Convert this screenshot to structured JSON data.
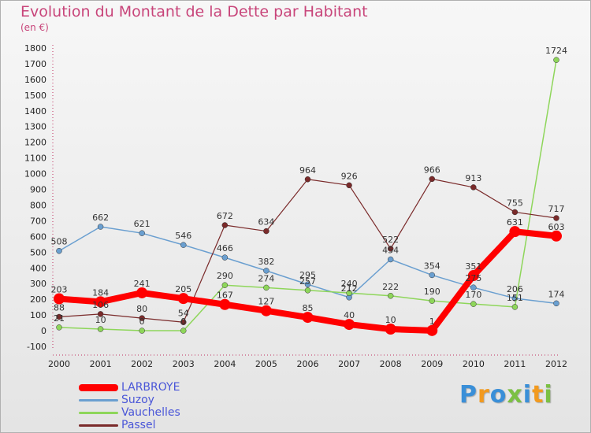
{
  "title": "Evolution du Montant de la Dette par Habitant",
  "subtitle": "(en €)",
  "brand": {
    "text": "Proxiti",
    "colors": [
      "#3a8fd8",
      "#f29a1f",
      "#3a8fd8",
      "#7bc043",
      "#3a8fd8",
      "#f29a1f",
      "#7bc043"
    ]
  },
  "chart_data": {
    "type": "line",
    "x": [
      "2000",
      "2001",
      "2002",
      "2003",
      "2004",
      "2005",
      "2006",
      "2007",
      "2008",
      "2009",
      "2010",
      "2011",
      "2012"
    ],
    "ylim": [
      -100,
      1800
    ],
    "yticks": [
      "-100",
      "0",
      "100",
      "200",
      "300",
      "400",
      "500",
      "600",
      "700",
      "800",
      "900",
      "1000",
      "1100",
      "1200",
      "1300",
      "1400",
      "1500",
      "1600",
      "1700",
      "1800"
    ],
    "grid": false,
    "legend_position": "bottom-left",
    "series": [
      {
        "name": "LARBROYE",
        "color": "#ff0000",
        "width": 8,
        "marker": 7,
        "values": [
          203,
          184,
          241,
          205,
          167,
          127,
          85,
          40,
          10,
          1,
          351,
          631,
          603
        ],
        "labels": [
          "203",
          "184",
          "241",
          "205",
          "167",
          "127",
          "85",
          "40",
          "10",
          "1",
          "351",
          "631",
          "603"
        ]
      },
      {
        "name": "Suzoy",
        "color": "#6a9fd0",
        "width": 1.5,
        "marker": 3.5,
        "values": [
          508,
          662,
          621,
          546,
          466,
          382,
          295,
          212,
          454,
          354,
          275,
          206,
          174
        ],
        "labels": [
          "508",
          "662",
          "621",
          "546",
          "466",
          "382",
          "295",
          "212",
          "454",
          "354",
          "275",
          "206",
          "174"
        ]
      },
      {
        "name": "Vauchelles",
        "color": "#8ed65a",
        "width": 1.5,
        "marker": 3.5,
        "values": [
          21,
          10,
          0,
          0,
          290,
          274,
          257,
          240,
          222,
          190,
          170,
          151,
          1724
        ],
        "labels": [
          "21",
          "10",
          "0",
          "0",
          "290",
          "274",
          "257",
          "240",
          "222",
          "190",
          "170",
          "151",
          "1724"
        ]
      },
      {
        "name": "Passel",
        "color": "#7a2a2a",
        "width": 1.2,
        "marker": 3.5,
        "values": [
          88,
          106,
          80,
          54,
          672,
          634,
          964,
          926,
          522,
          966,
          913,
          755,
          717
        ],
        "labels": [
          "88",
          "106",
          "80",
          "54",
          "672",
          "634",
          "964",
          "926",
          "522",
          "966",
          "913",
          "755",
          "717"
        ]
      }
    ]
  }
}
